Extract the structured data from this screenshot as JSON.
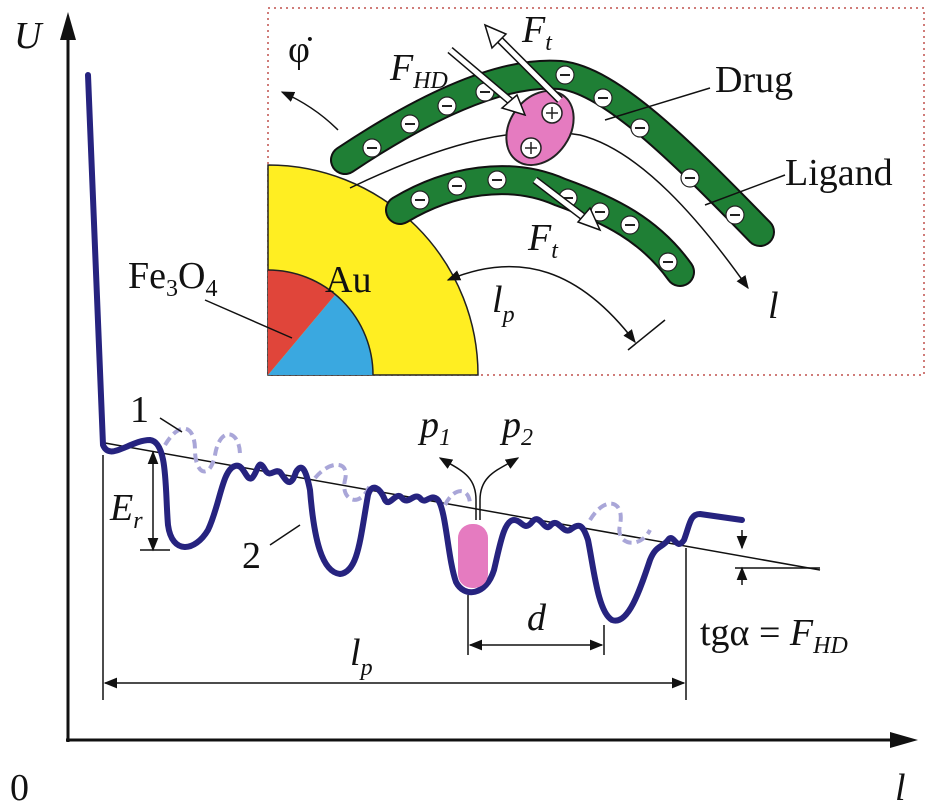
{
  "axes": {
    "y_label": "U",
    "x_label": "l",
    "origin": "0"
  },
  "inset": {
    "rotation": "φ̇",
    "force_hd": {
      "main": "F",
      "sub": "HD"
    },
    "force_t_top": {
      "main": "F",
      "sub": "t"
    },
    "force_t_bottom": {
      "main": "F",
      "sub": "t"
    },
    "drug": "Drug",
    "ligand": "Ligand",
    "core": {
      "main": "Fe",
      "sub1": "3",
      "mid": "O",
      "sub2": "4"
    },
    "shell": "Au",
    "length": {
      "main": "l",
      "sub": "p"
    },
    "coordinate": "l"
  },
  "plot": {
    "curve_1": "1",
    "curve_2": "2",
    "p1": {
      "main": "p",
      "sub": "1"
    },
    "p2": {
      "main": "p",
      "sub": "2"
    },
    "barrier": {
      "main": "E",
      "sub": "r"
    },
    "period": "d",
    "length": {
      "main": "l",
      "sub": "p"
    },
    "slope": {
      "prefix": "tgα = ",
      "main": "F",
      "sub": "HD"
    }
  }
}
